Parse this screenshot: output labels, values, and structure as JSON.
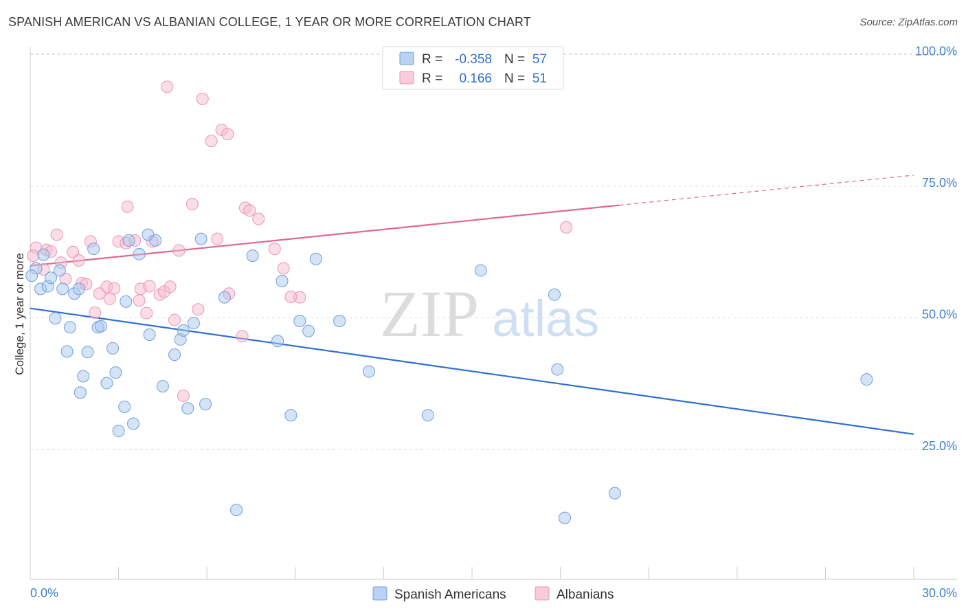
{
  "title": "SPANISH AMERICAN VS ALBANIAN COLLEGE, 1 YEAR OR MORE CORRELATION CHART",
  "source": "Source: ZipAtlas.com",
  "watermark": {
    "zip": "ZIP",
    "atlas": "atlas"
  },
  "colors": {
    "blue_fill": "#a9c8ee",
    "blue_stroke": "#6f9fdc",
    "blue_line": "#2f6fcf",
    "pink_fill": "#f6bcd0",
    "pink_stroke": "#e995b3",
    "pink_line": "#e0688f",
    "axis_label": "#3f7fd2",
    "grid": "#dddddd"
  },
  "legend": {
    "rows": [
      {
        "r_label": "R =",
        "r_value": "-0.358",
        "n_label": "N =",
        "n_value": "57",
        "color": "blue"
      },
      {
        "r_label": "R =",
        "r_value": "0.166",
        "n_label": "N =",
        "n_value": "51",
        "color": "pink"
      }
    ]
  },
  "bottom_legend": [
    {
      "label": "Spanish Americans",
      "color": "blue"
    },
    {
      "label": "Albanians",
      "color": "pink"
    }
  ],
  "chart_data": {
    "type": "scatter",
    "title": "SPANISH AMERICAN VS ALBANIAN COLLEGE, 1 YEAR OR MORE CORRELATION CHART",
    "xlabel": "",
    "ylabel": "College, 1 year or more",
    "xlim": [
      0,
      30
    ],
    "ylim": [
      0,
      105
    ],
    "x_tick_labels": [
      "0.0%",
      "30.0%"
    ],
    "y_ticks": [
      25,
      50,
      75,
      100
    ],
    "y_tick_labels": [
      "25.0%",
      "50.0%",
      "75.0%",
      "100.0%"
    ],
    "grid": true,
    "legend_position": "top-center",
    "series": [
      {
        "name": "Spanish Americans",
        "color": "blue",
        "r": -0.358,
        "n": 57,
        "trend": {
          "x": [
            0,
            30
          ],
          "y": [
            51.8,
            27.9
          ]
        },
        "points": [
          [
            0.2,
            59.4
          ],
          [
            0.35,
            55.5
          ],
          [
            0.45,
            62.0
          ],
          [
            0.6,
            56.0
          ],
          [
            0.7,
            57.6
          ],
          [
            0.85,
            49.9
          ],
          [
            1.0,
            59.0
          ],
          [
            1.1,
            55.5
          ],
          [
            1.25,
            43.6
          ],
          [
            1.35,
            48.2
          ],
          [
            1.5,
            54.6
          ],
          [
            1.65,
            55.5
          ],
          [
            1.7,
            35.8
          ],
          [
            1.8,
            38.9
          ],
          [
            1.95,
            43.5
          ],
          [
            2.15,
            63.1
          ],
          [
            2.3,
            48.2
          ],
          [
            2.4,
            48.4
          ],
          [
            2.6,
            37.6
          ],
          [
            2.8,
            44.2
          ],
          [
            2.9,
            39.6
          ],
          [
            3.0,
            28.5
          ],
          [
            3.2,
            33.1
          ],
          [
            3.25,
            53.1
          ],
          [
            3.35,
            64.7
          ],
          [
            3.5,
            29.9
          ],
          [
            3.7,
            62.1
          ],
          [
            4.0,
            65.8
          ],
          [
            4.05,
            46.8
          ],
          [
            4.25,
            64.7
          ],
          [
            4.5,
            37.0
          ],
          [
            4.9,
            43.0
          ],
          [
            5.1,
            45.9
          ],
          [
            5.2,
            47.6
          ],
          [
            5.35,
            32.8
          ],
          [
            5.55,
            49.0
          ],
          [
            5.8,
            65.0
          ],
          [
            5.95,
            33.6
          ],
          [
            6.6,
            53.9
          ],
          [
            7.0,
            13.5
          ],
          [
            7.55,
            61.8
          ],
          [
            8.4,
            45.6
          ],
          [
            8.55,
            57.0
          ],
          [
            8.85,
            31.5
          ],
          [
            9.15,
            49.4
          ],
          [
            9.45,
            47.5
          ],
          [
            9.7,
            61.2
          ],
          [
            10.5,
            49.4
          ],
          [
            11.5,
            39.8
          ],
          [
            13.5,
            31.5
          ],
          [
            15.3,
            59.0
          ],
          [
            17.8,
            54.4
          ],
          [
            17.9,
            40.2
          ],
          [
            18.15,
            12.0
          ],
          [
            19.85,
            16.7
          ],
          [
            28.4,
            38.3
          ],
          [
            0.05,
            58.0
          ]
        ]
      },
      {
        "name": "Albanians",
        "color": "pink",
        "r": 0.166,
        "n": 51,
        "trend": {
          "x": [
            0,
            20.0,
            30
          ],
          "y": [
            59.9,
            71.4,
            77.1
          ]
        },
        "points": [
          [
            0.2,
            63.3
          ],
          [
            0.45,
            59.2
          ],
          [
            0.55,
            62.9
          ],
          [
            0.7,
            62.6
          ],
          [
            0.9,
            65.8
          ],
          [
            1.05,
            60.5
          ],
          [
            1.2,
            57.4
          ],
          [
            1.45,
            62.5
          ],
          [
            1.65,
            60.9
          ],
          [
            1.75,
            56.6
          ],
          [
            1.9,
            56.4
          ],
          [
            2.05,
            64.5
          ],
          [
            2.2,
            51.0
          ],
          [
            2.35,
            54.6
          ],
          [
            2.6,
            55.9
          ],
          [
            2.7,
            53.6
          ],
          [
            2.85,
            55.6
          ],
          [
            3.0,
            64.5
          ],
          [
            3.25,
            64.2
          ],
          [
            3.3,
            71.1
          ],
          [
            3.55,
            64.7
          ],
          [
            3.7,
            53.3
          ],
          [
            3.75,
            55.5
          ],
          [
            3.95,
            50.9
          ],
          [
            4.05,
            56.0
          ],
          [
            4.15,
            64.5
          ],
          [
            4.4,
            54.4
          ],
          [
            4.55,
            55.0
          ],
          [
            4.75,
            55.9
          ],
          [
            4.9,
            49.6
          ],
          [
            5.05,
            62.8
          ],
          [
            5.2,
            35.2
          ],
          [
            5.5,
            71.6
          ],
          [
            5.7,
            51.6
          ],
          [
            5.85,
            91.6
          ],
          [
            6.15,
            83.6
          ],
          [
            6.35,
            65.0
          ],
          [
            6.5,
            85.7
          ],
          [
            6.7,
            84.9
          ],
          [
            6.75,
            54.6
          ],
          [
            7.2,
            46.5
          ],
          [
            7.3,
            70.9
          ],
          [
            7.45,
            70.4
          ],
          [
            7.75,
            68.8
          ],
          [
            8.3,
            63.1
          ],
          [
            8.6,
            59.4
          ],
          [
            9.15,
            53.9
          ],
          [
            4.65,
            93.9
          ],
          [
            18.2,
            67.2
          ],
          [
            8.85,
            54.0
          ],
          [
            0.1,
            61.8
          ]
        ]
      }
    ]
  }
}
